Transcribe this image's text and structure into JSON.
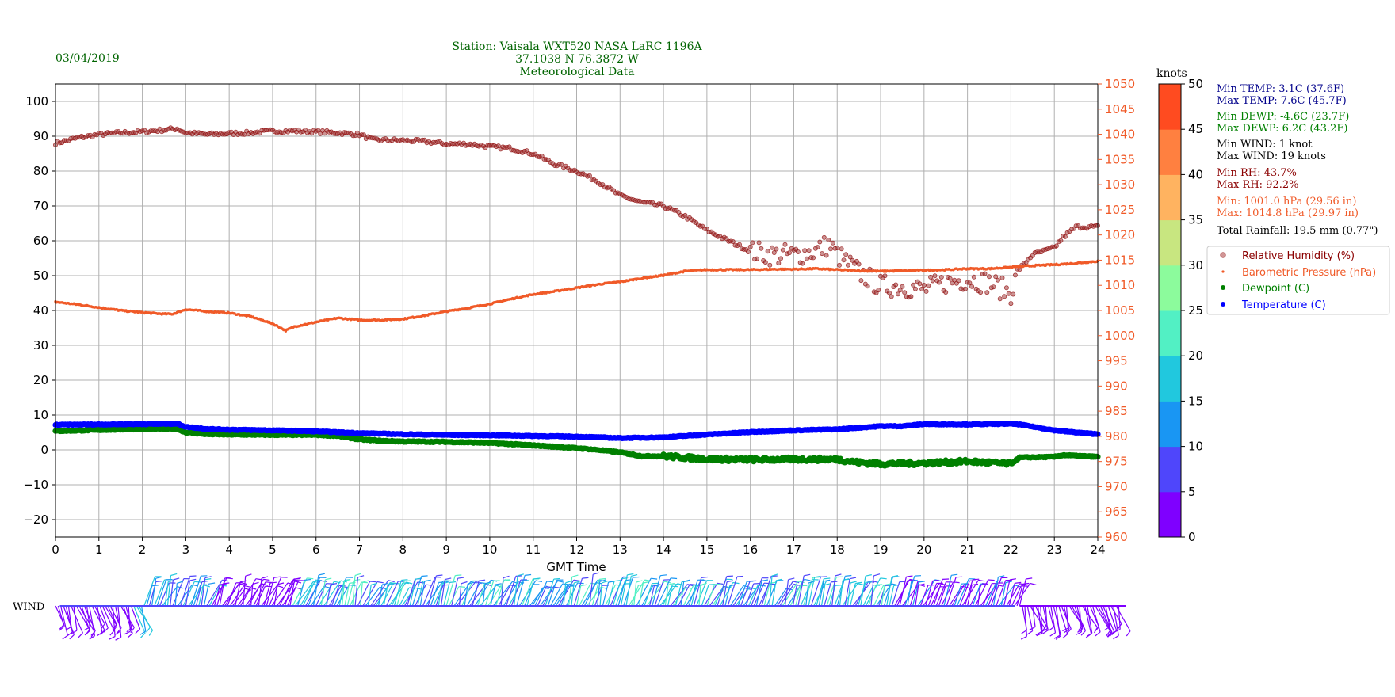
{
  "header": {
    "date": "03/04/2019",
    "station_line1": "Station:  Vaisala WXT520  NASA LaRC 1196A",
    "station_line2": "37.1038 N 76.3872 W",
    "station_line3": "Meteorological Data"
  },
  "colors": {
    "rh": "#8b0000",
    "pressure": "#f05a28",
    "dewpoint": "#008000",
    "temperature": "#0000ff",
    "temp_text": "#00008b",
    "header_text": "#006400"
  },
  "stats": {
    "min_temp": "Min TEMP: 3.1C (37.6F)",
    "max_temp": "Max TEMP: 7.6C (45.7F)",
    "min_dewp": "Min DEWP: -4.6C (23.7F)",
    "max_dewp": "Max DEWP: 6.2C (43.2F)",
    "min_wind": "Min WIND: 1 knot",
    "max_wind": "Max WIND: 19 knots",
    "min_rh": "Min RH: 43.7%",
    "max_rh": "Max RH: 92.2%",
    "min_press": "Min: 1001.0 hPa (29.56 in)",
    "max_press": "Max: 1014.8 hPa (29.97 in)",
    "rainfall": "Total Rainfall: 19.5 mm (0.77\")"
  },
  "wind_label": "WIND",
  "colorbar": {
    "title": "knots",
    "ticks": [
      "0",
      "5",
      "10",
      "15",
      "20",
      "25",
      "30",
      "35",
      "40",
      "45",
      "50"
    ],
    "bands": [
      "#7f00ff",
      "#4f46fb",
      "#1996f3",
      "#21c8de",
      "#52f0c4",
      "#8cfb9c",
      "#c8e680",
      "#ffb360",
      "#ff8040",
      "#ff4b20",
      "#ff0000"
    ]
  },
  "chart_data": {
    "type": "scatter",
    "xlabel": "GMT Time",
    "x_ticks": [
      "0",
      "1",
      "2",
      "3",
      "4",
      "5",
      "6",
      "7",
      "8",
      "9",
      "10",
      "11",
      "12",
      "13",
      "14",
      "15",
      "16",
      "17",
      "18",
      "19",
      "20",
      "21",
      "22",
      "23",
      "24"
    ],
    "xlim": [
      0,
      24
    ],
    "ylim_left": [
      -25,
      105
    ],
    "y_left_ticks": [
      "100",
      "90",
      "80",
      "70",
      "60",
      "50",
      "40",
      "30",
      "20",
      "10",
      "0",
      "−10",
      "−20"
    ],
    "ylim_right": [
      960,
      1050
    ],
    "y_right_ticks": [
      "1050",
      "1045",
      "1040",
      "1035",
      "1030",
      "1025",
      "1020",
      "1015",
      "1010",
      "1005",
      "1000",
      "995",
      "990",
      "985",
      "980",
      "975",
      "970",
      "965",
      "960"
    ],
    "grid": true,
    "legend_position": "right",
    "legend": [
      "Relative Humidity (%)",
      "Barometric Pressure (hPa)",
      "Dewpoint (C)",
      "Temperature (C)"
    ],
    "series": [
      {
        "name": "Relative Humidity (%)",
        "axis": "left",
        "x": [
          0,
          0.5,
          1,
          1.5,
          2,
          2.5,
          2.8,
          3,
          3.5,
          4,
          4.5,
          5,
          5.5,
          6,
          6.5,
          7,
          7.3,
          8,
          8.5,
          9,
          9.5,
          10,
          10.5,
          11,
          11.5,
          12,
          12.5,
          13,
          13.5,
          14,
          14.5,
          15,
          15.5,
          16,
          16.5,
          17,
          17.5,
          17.8,
          18,
          18.5,
          19,
          19.5,
          20,
          20.5,
          21,
          21.5,
          22,
          22.2,
          22.5,
          23,
          23.2,
          23.5,
          24
        ],
        "y": [
          88,
          89.5,
          90.5,
          91,
          91.3,
          91.8,
          92.2,
          91,
          90.5,
          90.8,
          91,
          91.5,
          91.5,
          91.3,
          91,
          90.5,
          89,
          88.8,
          88.5,
          87.8,
          87.8,
          87,
          86.5,
          85,
          82,
          80,
          77,
          73,
          71,
          70,
          67,
          63,
          60,
          57,
          56,
          56,
          57,
          59,
          56,
          51,
          47,
          47,
          46,
          48,
          49,
          48,
          45,
          52,
          56,
          58,
          61,
          64,
          64
        ]
      },
      {
        "name": "Barometric Pressure (hPa)",
        "axis": "right",
        "x": [
          0,
          0.5,
          1,
          1.5,
          2,
          2.5,
          2.7,
          3,
          3.5,
          4,
          4.5,
          5,
          5.3,
          5.5,
          6,
          6.5,
          7,
          7.5,
          8,
          8.5,
          9,
          9.5,
          10,
          10.5,
          11,
          11.5,
          12,
          12.5,
          13,
          13.5,
          14,
          14.5,
          15,
          15.5,
          16,
          16.5,
          17,
          17.5,
          18,
          18.5,
          19,
          19.5,
          20,
          20.5,
          21,
          21.5,
          22,
          22.5,
          23,
          23.5,
          24
        ],
        "y": [
          1006.7,
          1006.2,
          1005.6,
          1005.0,
          1004.6,
          1004.3,
          1004.3,
          1005.2,
          1004.8,
          1004.5,
          1003.8,
          1002.4,
          1001.0,
          1001.8,
          1002.7,
          1003.5,
          1003.1,
          1003.1,
          1003.3,
          1004.0,
          1004.8,
          1005.5,
          1006.3,
          1007.3,
          1008.2,
          1008.8,
          1009.5,
          1010.2,
          1010.7,
          1011.4,
          1012.0,
          1012.8,
          1013.1,
          1013.1,
          1013.1,
          1013.2,
          1013.2,
          1013.3,
          1013.1,
          1012.9,
          1012.8,
          1012.9,
          1013.0,
          1013.1,
          1013.3,
          1013.3,
          1013.6,
          1013.9,
          1014.1,
          1014.4,
          1014.8
        ]
      },
      {
        "name": "Dewpoint (C)",
        "axis": "left",
        "x": [
          0,
          1,
          2,
          2.8,
          3,
          3.5,
          4,
          5,
          6,
          6.5,
          7,
          7.5,
          8,
          9,
          10,
          11,
          12,
          12.5,
          13,
          13.5,
          14,
          15,
          16,
          17,
          18,
          18.5,
          19,
          20,
          21,
          22,
          22.2,
          23,
          23.2,
          24
        ],
        "y": [
          5.4,
          5.7,
          6.0,
          6.0,
          5.0,
          4.5,
          4.4,
          4.3,
          4.3,
          4.0,
          3.0,
          2.6,
          2.4,
          2.3,
          2.0,
          1.3,
          0.5,
          0,
          -0.7,
          -1.8,
          -1.8,
          -2.6,
          -2.8,
          -2.7,
          -2.7,
          -3.6,
          -4.0,
          -3.8,
          -3.3,
          -4.0,
          -2.2,
          -2.0,
          -1.5,
          -2.0
        ]
      },
      {
        "name": "Temperature (C)",
        "axis": "left",
        "x": [
          0,
          1,
          2,
          2.8,
          3,
          3.5,
          4,
          5,
          6,
          7,
          8,
          9,
          10,
          11,
          12,
          12.5,
          13,
          14,
          15,
          16,
          17,
          18,
          19,
          19.5,
          20,
          21,
          22,
          22.2,
          23,
          23.5,
          24
        ],
        "y": [
          7.2,
          7.3,
          7.4,
          7.5,
          6.6,
          6.0,
          5.8,
          5.6,
          5.3,
          4.8,
          4.5,
          4.3,
          4.2,
          4.0,
          3.8,
          3.6,
          3.4,
          3.6,
          4.4,
          5.1,
          5.6,
          5.9,
          6.8,
          6.8,
          7.4,
          7.3,
          7.5,
          7.3,
          5.6,
          5.0,
          4.5
        ]
      }
    ]
  }
}
